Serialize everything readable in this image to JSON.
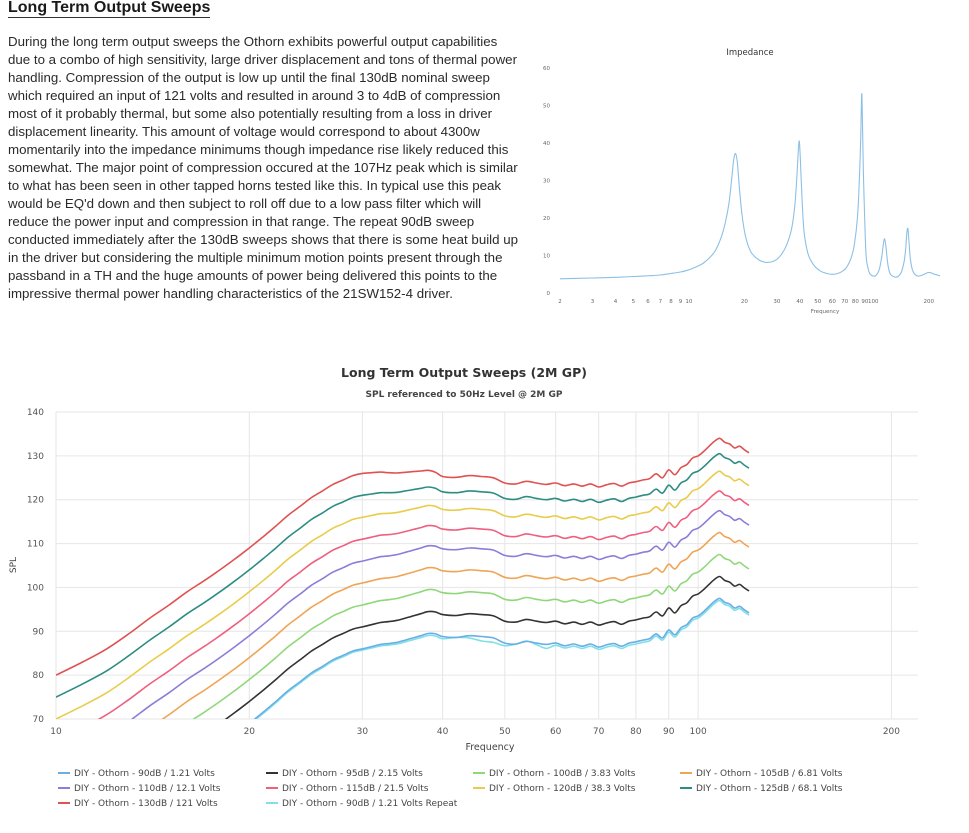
{
  "page": {
    "title": "Long Term Output Sweeps",
    "body": "During the long term output sweeps the Othorn exhibits powerful output capabilities due to a combo of high sensitivity, large driver displacement and tons of thermal power handling. Compression of the output is low up until the final 130dB nominal sweep which required an input of 121 volts and resulted in around 3 to 4dB of compression most of it probably thermal, but some also potentially resulting from a loss in driver displacement linearity. This amount of voltage would correspond to about 4300w momentarily into the impedance minimums though impedance rise likely reduced this somewhat. The major point of compression occured at the 107Hz peak which is similar to what has been seen in other tapped horns tested like this. In typical use this peak would be EQ'd down and then subject to roll off due to a low pass filter which will reduce the power input and compression in that range. The repeat 90dB sweep conducted immediately after the 130dB sweeps shows that there is some heat build up in the driver but considering the multiple minimum motion points present through the passband in a TH and the huge amounts of power being delivered this points to the impressive thermal power handling characteristics of the 21SW152-4 driver."
  },
  "chart_data": [
    {
      "type": "line",
      "title": "Impedance",
      "xlabel": "Frequency",
      "ylabel": "",
      "x_scale": "log",
      "xlim": [
        2,
        230
      ],
      "ylim": [
        0,
        60
      ],
      "y_ticks": [
        0,
        10,
        20,
        30,
        40,
        50,
        60
      ],
      "x_ticks": [
        "2",
        "3",
        "4",
        "5",
        "6",
        "7",
        "8",
        "9",
        "10",
        "20",
        "30",
        "40",
        "50",
        "60",
        "70",
        "80",
        "90",
        "100",
        "200"
      ],
      "x_tick_values": [
        2,
        3,
        4,
        5,
        6,
        7,
        8,
        9,
        10,
        20,
        30,
        40,
        50,
        60,
        70,
        80,
        90,
        100,
        200
      ],
      "grid": false,
      "color": "#8cc0e6",
      "series": [
        {
          "x": [
            2,
            3,
            4,
            5,
            6,
            7,
            8,
            9,
            10,
            11,
            12,
            13,
            14,
            15,
            15.8,
            16.5,
            17.1,
            17.5,
            17.9,
            18.3,
            18.8,
            19.4,
            20.2,
            21,
            22,
            24,
            26,
            28,
            30,
            32,
            34,
            36,
            37.5,
            38.5,
            39.2,
            39.7,
            40.2,
            41,
            42,
            43.5,
            45,
            48,
            52,
            56,
            60,
            64,
            68,
            72,
            76,
            79,
            82,
            84,
            85.5,
            86.5,
            87.2,
            88,
            89,
            90,
            91,
            92,
            94,
            96,
            100,
            104,
            108,
            111,
            113,
            115,
            117,
            119,
            121,
            124,
            130,
            136,
            142,
            147,
            150,
            152,
            154,
            156,
            159,
            163,
            168,
            175,
            185,
            200,
            215,
            230
          ],
          "y": [
            3.8,
            4.0,
            4.2,
            4.4,
            4.6,
            4.8,
            5.2,
            5.6,
            6.2,
            7.0,
            8.0,
            9.5,
            11.5,
            15,
            19,
            24,
            31,
            35.5,
            37.2,
            35,
            28,
            21,
            15.5,
            12.5,
            10.5,
            8.8,
            8.2,
            8.3,
            9,
            10.5,
            13,
            17,
            23,
            31,
            38,
            40.5,
            36,
            26,
            17,
            12,
            9.5,
            7.2,
            5.8,
            5.2,
            5.0,
            5.2,
            5.8,
            7,
            9.5,
            13,
            20,
            30,
            42,
            53,
            48,
            36,
            26,
            18,
            12,
            8.5,
            6.3,
            5.1,
            4.5,
            4.8,
            6.5,
            9.5,
            12.5,
            14.5,
            12.5,
            9,
            6.5,
            5,
            4.3,
            4.4,
            5.6,
            8.5,
            12,
            16,
            17.2,
            14,
            9,
            6.2,
            5,
            4.5,
            4.8,
            5.5,
            5.0,
            4.6
          ]
        }
      ]
    },
    {
      "type": "line",
      "title": "Long Term Output Sweeps (2M GP)",
      "subtitle": "SPL referenced to 50Hz Level @ 2M GP",
      "xlabel": "Frequency",
      "ylabel": "SPL",
      "x_scale": "log",
      "xlim": [
        10,
        220
      ],
      "ylim": [
        70,
        140
      ],
      "y_ticks": [
        70,
        80,
        90,
        100,
        110,
        120,
        130,
        140
      ],
      "x_ticks": [
        "10",
        "20",
        "30",
        "40",
        "50",
        "60",
        "70",
        "80",
        "90",
        "100",
        "200"
      ],
      "x_tick_values": [
        10,
        20,
        30,
        40,
        50,
        60,
        70,
        80,
        90,
        100,
        200
      ],
      "grid": true,
      "legend_position": "bottom",
      "base_x": [
        10,
        11,
        12,
        13,
        14,
        15,
        16,
        17,
        18,
        19,
        20,
        21,
        22,
        23,
        24,
        25,
        26,
        27,
        28,
        29,
        30,
        31,
        32,
        33,
        34,
        35,
        36,
        37,
        38,
        39,
        40,
        42,
        44,
        46,
        48,
        50,
        52,
        54,
        56,
        58,
        60,
        62,
        64,
        66,
        68,
        70,
        72,
        74,
        76,
        78,
        80,
        82,
        84,
        86,
        88,
        90,
        92,
        94,
        96,
        98,
        100,
        102,
        104,
        106,
        108,
        110,
        112,
        114,
        116,
        118,
        120
      ],
      "base_y": [
        70,
        73,
        76,
        79.5,
        83,
        86,
        89,
        91.5,
        94,
        96.5,
        99,
        101.5,
        104,
        106.5,
        108.5,
        110.5,
        112,
        113.5,
        114.5,
        115.5,
        116,
        116.5,
        117,
        117.2,
        117.5,
        118,
        118.5,
        119,
        119.5,
        119.4,
        118.8,
        118.6,
        119,
        118.8,
        118.5,
        117.3,
        117.1,
        117.7,
        117.3,
        117,
        117.3,
        116.7,
        117.1,
        116.6,
        117.1,
        116.4,
        116.9,
        117.2,
        116.6,
        117.3,
        117.6,
        118,
        118.3,
        119.4,
        118.5,
        120.3,
        119.2,
        120.8,
        121.5,
        123,
        123.5,
        124.5,
        125.7,
        126.8,
        127.5,
        126.6,
        126.2,
        125.3,
        125.7,
        124.9,
        124.2
      ],
      "series": [
        {
          "name": "DIY - Othorn - 90dB / 1.21 Volts",
          "color": "#6aaee6",
          "offset": -30,
          "comp": 0
        },
        {
          "name": "DIY - Othorn - 95dB / 2.15 Volts",
          "color": "#333333",
          "offset": -25,
          "comp": 0
        },
        {
          "name": "DIY - Othorn - 100dB / 3.83 Volts",
          "color": "#8fd87a",
          "offset": -20,
          "comp": 0
        },
        {
          "name": "DIY - Othorn - 105dB / 6.81 Volts",
          "color": "#f0a455",
          "offset": -15,
          "comp": 0
        },
        {
          "name": "DIY - Othorn - 110dB / 12.1 Volts",
          "color": "#8b7dd8",
          "offset": -10,
          "comp": 0
        },
        {
          "name": "DIY - Othorn - 115dB / 21.5 Volts",
          "color": "#ef5f7e",
          "offset": -5,
          "comp": 0.5
        },
        {
          "name": "DIY - Othorn - 120dB / 38.3 Volts",
          "color": "#e8cc4a",
          "offset": 0,
          "comp": 1
        },
        {
          "name": "DIY - Othorn - 125dB / 68.1 Volts",
          "color": "#2b8d83",
          "offset": 5,
          "comp": 2
        },
        {
          "name": "DIY - Othorn - 130dB / 121 Volts",
          "color": "#e05252",
          "offset": 10,
          "comp": 3.5
        },
        {
          "name": "DIY - Othorn - 90dB / 1.21 Volts Repeat",
          "color": "#7fe0e8",
          "offset": -30.3,
          "comp": 0.2
        }
      ]
    }
  ]
}
